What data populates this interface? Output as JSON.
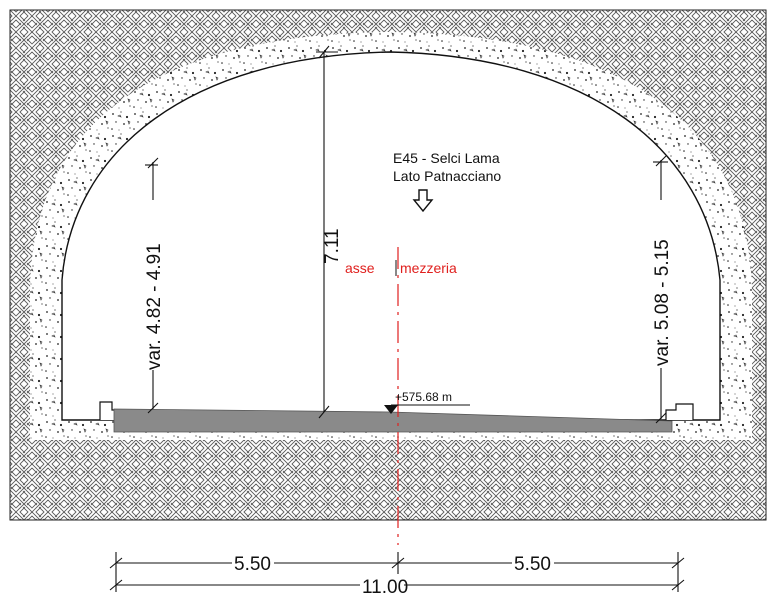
{
  "drawing": {
    "direction_line1": "E45 - Selci Lama",
    "direction_line2": "Lato Patnacciano",
    "axis_label_left": "asse",
    "axis_label_right": "mezzeria",
    "elevation": "+575.68  m",
    "height_center": "7.11",
    "height_left": "var. 4.82 - 4.91",
    "height_right": "var. 5.08 - 5.15",
    "width_left": "5.50",
    "width_right": "5.50",
    "width_total": "11.00"
  },
  "colors": {
    "line": "#111111",
    "axis": "#e0201e",
    "pavement": "#8a8a8a",
    "rock_hatch": "#5a5a5a"
  }
}
